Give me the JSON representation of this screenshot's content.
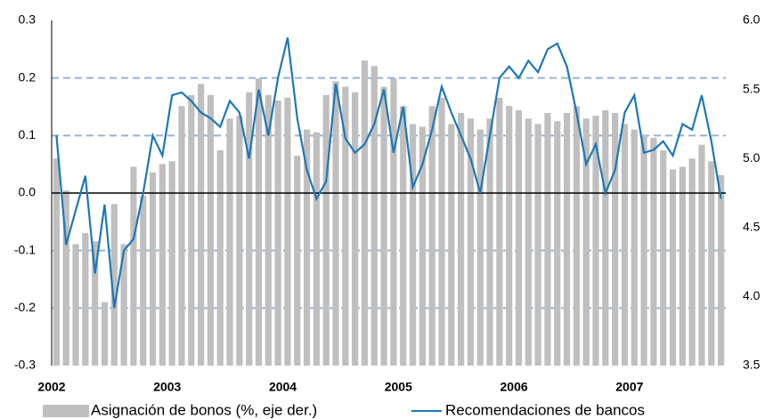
{
  "chart_data": {
    "type": "bar-line",
    "categories": [
      "2002",
      null,
      null,
      null,
      null,
      null,
      null,
      null,
      null,
      null,
      null,
      null,
      "2003",
      null,
      null,
      null,
      null,
      null,
      null,
      null,
      null,
      null,
      null,
      null,
      "2004",
      null,
      null,
      null,
      null,
      null,
      null,
      null,
      null,
      null,
      null,
      null,
      "2005",
      null,
      null,
      null,
      null,
      null,
      null,
      null,
      null,
      null,
      null,
      null,
      "2006",
      null,
      null,
      null,
      null,
      null,
      null,
      null,
      null,
      null,
      null,
      null,
      "2007",
      null,
      null,
      null,
      null,
      null,
      null,
      null,
      null,
      null
    ],
    "series": [
      {
        "name": "Asignación de bonos (%, eje der.)",
        "type": "bar",
        "axis": "y2",
        "color": "#bfbfbf",
        "values": [
          5.0,
          4.77,
          4.38,
          4.46,
          4.4,
          3.96,
          4.67,
          4.38,
          4.94,
          4.73,
          4.9,
          4.96,
          4.98,
          5.38,
          5.46,
          5.54,
          5.46,
          5.06,
          5.29,
          5.31,
          5.48,
          5.58,
          5.46,
          5.42,
          5.44,
          5.02,
          5.21,
          5.19,
          5.46,
          5.56,
          5.52,
          5.48,
          5.71,
          5.67,
          5.52,
          5.58,
          5.38,
          5.25,
          5.23,
          5.38,
          5.44,
          5.25,
          5.33,
          5.29,
          5.21,
          5.29,
          5.44,
          5.38,
          5.35,
          5.29,
          5.25,
          5.33,
          5.27,
          5.33,
          5.38,
          5.29,
          5.31,
          5.35,
          5.33,
          5.25,
          5.21,
          5.17,
          5.15,
          5.06,
          4.92,
          4.94,
          5.0,
          5.1,
          4.98,
          4.88
        ]
      },
      {
        "name": "Recomendaciones de bancos",
        "type": "line",
        "color": "#1f77b4",
        "values": [
          0.1,
          -0.09,
          -0.03,
          0.03,
          -0.14,
          -0.02,
          -0.2,
          -0.1,
          -0.08,
          0.0,
          0.1,
          0.065,
          0.17,
          0.175,
          0.16,
          0.14,
          0.13,
          0.115,
          0.16,
          0.14,
          0.06,
          0.18,
          0.1,
          0.2,
          0.27,
          0.13,
          0.04,
          -0.01,
          0.02,
          0.19,
          0.095,
          0.07,
          0.085,
          0.12,
          0.18,
          0.07,
          0.15,
          0.01,
          0.05,
          0.11,
          0.185,
          0.14,
          0.1,
          0.06,
          0.0,
          0.1,
          0.2,
          0.22,
          0.2,
          0.23,
          0.21,
          0.25,
          0.26,
          0.22,
          0.14,
          0.05,
          0.085,
          0.0,
          0.04,
          0.14,
          0.17,
          0.07,
          0.075,
          0.09,
          0.065,
          0.12,
          0.11,
          0.17,
          0.09,
          -0.01
        ]
      }
    ],
    "ylim": [
      -0.3,
      0.3
    ],
    "yticks": [
      -0.3,
      -0.2,
      -0.1,
      {
        "value": 0,
        "label": "0.0"
      },
      0.1,
      0.2,
      0.3
    ],
    "y2lim": [
      3.5,
      6.0
    ],
    "y2ticks": [
      3.5,
      {
        "value": 4,
        "label": "4.0"
      },
      4.5,
      {
        "value": 5,
        "label": "5.0"
      },
      5.5,
      {
        "value": 6,
        "label": "6.0"
      }
    ],
    "grid": true,
    "legend": "bottom"
  }
}
